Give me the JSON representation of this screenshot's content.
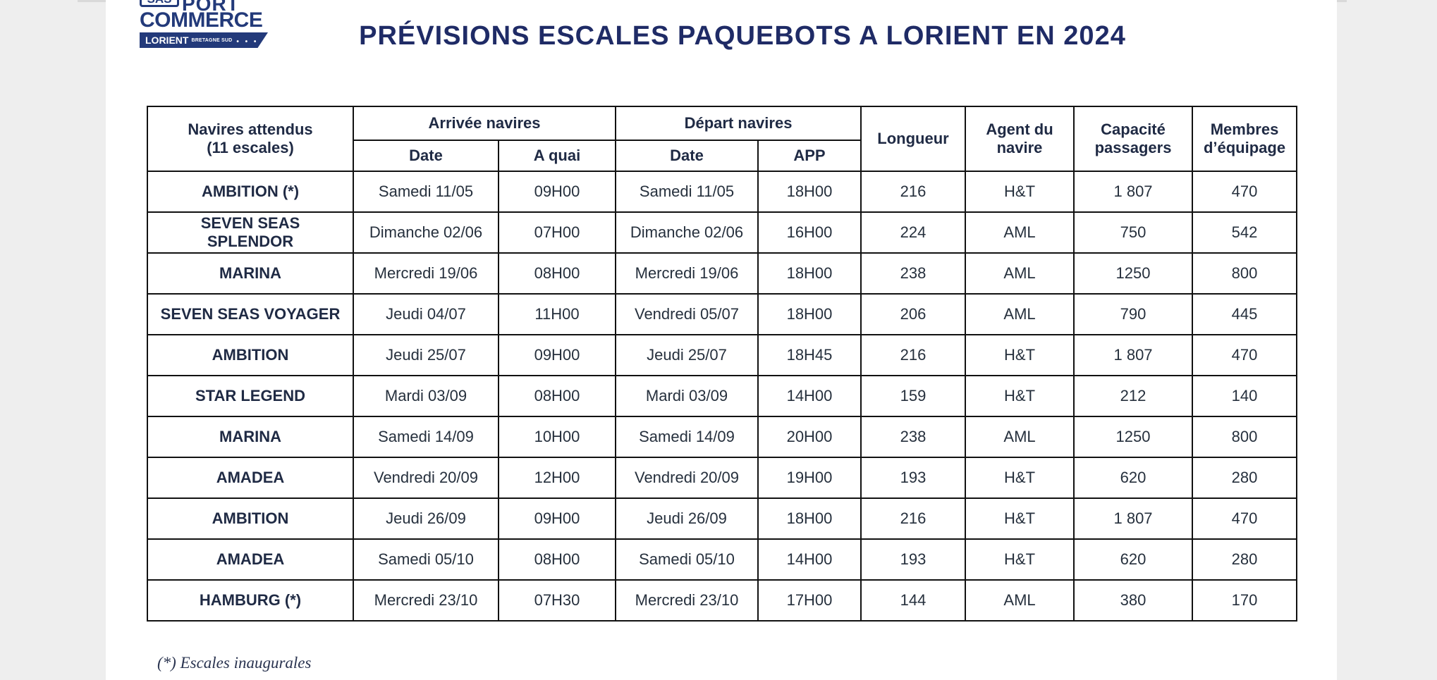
{
  "logo": {
    "sas": "SAS",
    "port": "PORT",
    "commerce": "COMMERCE",
    "lorient": "LORIENT",
    "region": "BRETAGNE SUD",
    "dots": "• • •"
  },
  "title": "PRÉVISIONS ESCALES PAQUEBOTS A LORIENT EN 2024",
  "table": {
    "headers": {
      "ships_line1": "Navires attendus",
      "ships_line2": "(11 escales)",
      "arrival_group": "Arrivée navires",
      "departure_group": "Départ navires",
      "length": "Longueur",
      "agent_line1": "Agent du",
      "agent_line2": "navire",
      "capacity_line1": "Capacité",
      "capacity_line2": "passagers",
      "crew_line1": "Membres",
      "crew_line2": "d’équipage",
      "arr_date": "Date",
      "arr_quay": "A quai",
      "dep_date": "Date",
      "dep_app": "APP"
    },
    "rows": [
      {
        "ship": "AMBITION (*)",
        "arr_date": "Samedi 11/05",
        "arr_time": "09H00",
        "dep_date": "Samedi 11/05",
        "dep_time": "18H00",
        "length": "216",
        "agent": "H&T",
        "capacity": "1 807",
        "crew": "470"
      },
      {
        "ship": "SEVEN SEAS SPLENDOR",
        "arr_date": "Dimanche 02/06",
        "arr_time": "07H00",
        "dep_date": "Dimanche 02/06",
        "dep_time": "16H00",
        "length": "224",
        "agent": "AML",
        "capacity": "750",
        "crew": "542"
      },
      {
        "ship": "MARINA",
        "arr_date": "Mercredi 19/06",
        "arr_time": "08H00",
        "dep_date": "Mercredi 19/06",
        "dep_time": "18H00",
        "length": "238",
        "agent": "AML",
        "capacity": "1250",
        "crew": "800"
      },
      {
        "ship": "SEVEN SEAS VOYAGER",
        "arr_date": "Jeudi 04/07",
        "arr_time": "11H00",
        "dep_date": "Vendredi 05/07",
        "dep_time": "18H00",
        "length": "206",
        "agent": "AML",
        "capacity": "790",
        "crew": "445"
      },
      {
        "ship": "AMBITION",
        "arr_date": "Jeudi 25/07",
        "arr_time": "09H00",
        "dep_date": "Jeudi 25/07",
        "dep_time": "18H45",
        "length": "216",
        "agent": "H&T",
        "capacity": "1 807",
        "crew": "470"
      },
      {
        "ship": "STAR LEGEND",
        "arr_date": "Mardi 03/09",
        "arr_time": "08H00",
        "dep_date": "Mardi 03/09",
        "dep_time": "14H00",
        "length": "159",
        "agent": "H&T",
        "capacity": "212",
        "crew": "140"
      },
      {
        "ship": "MARINA",
        "arr_date": "Samedi 14/09",
        "arr_time": "10H00",
        "dep_date": "Samedi 14/09",
        "dep_time": "20H00",
        "length": "238",
        "agent": "AML",
        "capacity": "1250",
        "crew": "800"
      },
      {
        "ship": "AMADEA",
        "arr_date": "Vendredi 20/09",
        "arr_time": "12H00",
        "dep_date": "Vendredi 20/09",
        "dep_time": "19H00",
        "length": "193",
        "agent": "H&T",
        "capacity": "620",
        "crew": "280"
      },
      {
        "ship": "AMBITION",
        "arr_date": "Jeudi 26/09",
        "arr_time": "09H00",
        "dep_date": "Jeudi 26/09",
        "dep_time": "18H00",
        "length": "216",
        "agent": "H&T",
        "capacity": "1 807",
        "crew": "470"
      },
      {
        "ship": "AMADEA",
        "arr_date": "Samedi 05/10",
        "arr_time": "08H00",
        "dep_date": "Samedi 05/10",
        "dep_time": "14H00",
        "length": "193",
        "agent": "H&T",
        "capacity": "620",
        "crew": "280"
      },
      {
        "ship": "HAMBURG (*)",
        "arr_date": "Mercredi 23/10",
        "arr_time": "07H30",
        "dep_date": "Mercredi 23/10",
        "dep_time": "17H00",
        "length": "144",
        "agent": "AML",
        "capacity": "380",
        "crew": "170"
      }
    ]
  },
  "footnote": "(*) Escales inaugurales"
}
